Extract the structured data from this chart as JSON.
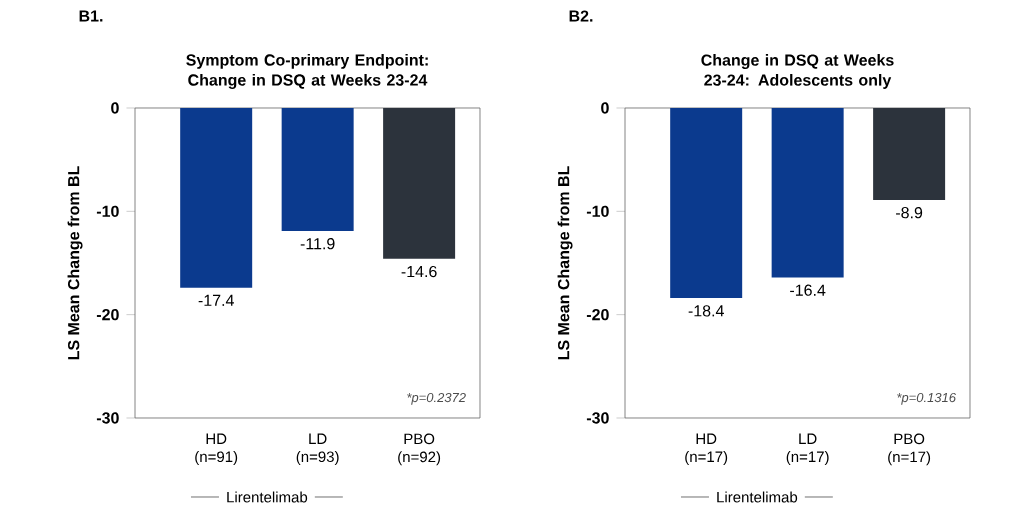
{
  "chart_data": [
    {
      "type": "bar",
      "title": "Symptom Co-primary Endpoint: Change in DSQ at Weeks 23-24",
      "ylabel": "LS Mean Change from BL",
      "categories": [
        "HD (n=91)",
        "LD (n=93)",
        "PBO (n=92)"
      ],
      "values": [
        -17.4,
        -11.9,
        -14.6
      ],
      "colors": [
        "#0b3a8e",
        "#0b3a8e",
        "#2c333c"
      ],
      "ylim": [
        -30,
        0
      ],
      "yticks": [
        -30,
        -20,
        -10,
        0
      ],
      "data_labels": true,
      "annotations": [
        "B1.",
        "*p=0.2372",
        "Lirentelimab"
      ]
    },
    {
      "type": "bar",
      "title": "Change in DSQ at Weeks 23-24: Adolescents only",
      "ylabel": "LS Mean Change from BL",
      "categories": [
        "HD (n=17)",
        "LD (n=17)",
        "PBO (n=17)"
      ],
      "values": [
        -18.4,
        -16.4,
        -8.9
      ],
      "colors": [
        "#0b3a8e",
        "#0b3a8e",
        "#2c333c"
      ],
      "ylim": [
        -30,
        0
      ],
      "yticks": [
        -30,
        -20,
        -10,
        0
      ],
      "data_labels": true,
      "annotations": [
        "B2.",
        "*p=0.1316",
        "Lirentelimab"
      ]
    }
  ]
}
